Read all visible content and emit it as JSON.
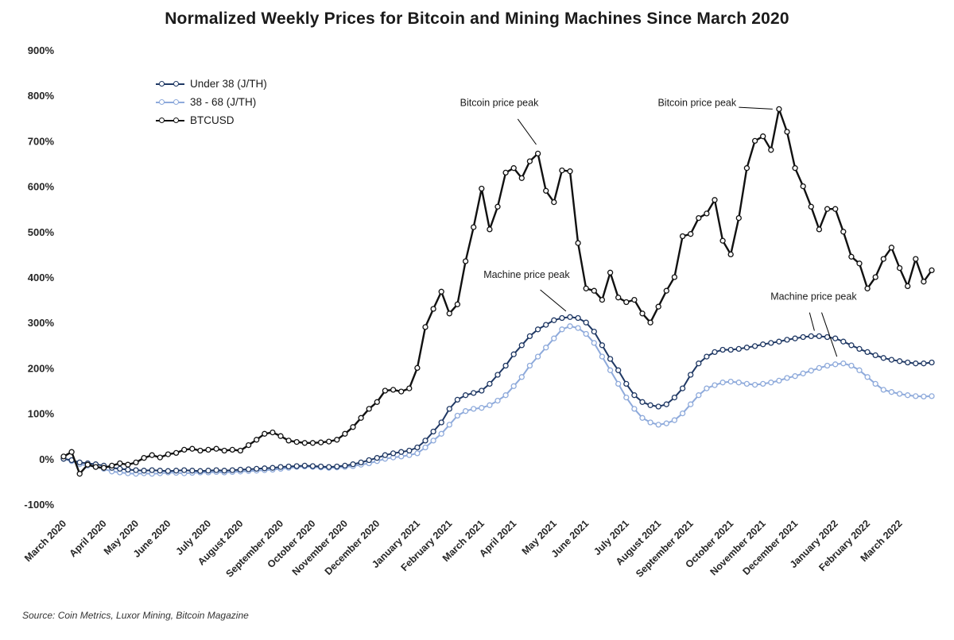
{
  "chart_data": {
    "type": "line",
    "title": "Normalized Weekly Prices for Bitcoin and Mining Machines Since March 2020",
    "source": "Source: Coin Metrics, Luxor Mining, Bitcoin Magazine",
    "legend_position": "top-left-inside",
    "grid": false,
    "y_axis": {
      "format": "percent",
      "ylim": [
        -100,
        900
      ],
      "ticks": [
        900,
        800,
        700,
        600,
        500,
        400,
        300,
        200,
        100,
        0,
        -100
      ]
    },
    "x_axis": {
      "unit": "weekly",
      "tick_labels": [
        "March 2020",
        "April 2020",
        "May 2020",
        "June 2020",
        "July 2020",
        "August 2020",
        "September 2020",
        "October 2020",
        "November 2020",
        "December 2020",
        "January 2021",
        "February 2021",
        "March 2021",
        "April 2021",
        "May 2021",
        "June 2021",
        "July 2021",
        "August 2021",
        "September 2021",
        "October 2021",
        "November 2021",
        "December 2021",
        "January 2022",
        "February 2022",
        "March 2022"
      ],
      "tick_weeks": [
        0,
        5,
        9,
        13,
        18,
        22,
        27,
        31,
        35,
        39,
        44,
        48,
        52,
        56,
        61,
        65,
        70,
        74,
        78,
        83,
        87,
        91,
        96,
        100,
        104
      ]
    },
    "series": [
      {
        "name": "Under 38 (J/TH)",
        "color": "#1F3864",
        "values": [
          0,
          -3,
          -8,
          -10,
          -12,
          -15,
          -20,
          -22,
          -24,
          -25,
          -26,
          -25,
          -26,
          -27,
          -26,
          -25,
          -26,
          -27,
          -26,
          -25,
          -26,
          -25,
          -24,
          -23,
          -22,
          -21,
          -20,
          -18,
          -17,
          -16,
          -15,
          -16,
          -17,
          -18,
          -17,
          -15,
          -12,
          -8,
          -3,
          2,
          8,
          12,
          15,
          18,
          25,
          40,
          60,
          80,
          110,
          130,
          140,
          145,
          150,
          165,
          185,
          205,
          230,
          250,
          270,
          285,
          295,
          305,
          310,
          312,
          310,
          300,
          280,
          250,
          220,
          195,
          165,
          140,
          125,
          118,
          115,
          120,
          135,
          155,
          185,
          210,
          225,
          235,
          240,
          240,
          242,
          245,
          248,
          252,
          255,
          258,
          262,
          265,
          268,
          270,
          270,
          268,
          265,
          258,
          250,
          242,
          235,
          228,
          222,
          218,
          215,
          212,
          210,
          210,
          212
        ]
      },
      {
        "name": "38 - 68 (J/TH)",
        "color": "#8EAADB",
        "values": [
          0,
          -5,
          -12,
          -15,
          -18,
          -22,
          -28,
          -30,
          -32,
          -33,
          -32,
          -33,
          -32,
          -30,
          -31,
          -32,
          -31,
          -30,
          -30,
          -29,
          -30,
          -29,
          -28,
          -27,
          -26,
          -25,
          -24,
          -22,
          -20,
          -18,
          -17,
          -18,
          -19,
          -20,
          -19,
          -18,
          -16,
          -13,
          -10,
          -5,
          0,
          3,
          5,
          8,
          12,
          25,
          40,
          55,
          75,
          95,
          105,
          110,
          112,
          118,
          128,
          140,
          160,
          180,
          205,
          225,
          245,
          265,
          285,
          292,
          288,
          275,
          255,
          225,
          195,
          165,
          135,
          110,
          90,
          80,
          75,
          78,
          85,
          100,
          120,
          140,
          155,
          162,
          168,
          170,
          168,
          165,
          163,
          165,
          168,
          172,
          178,
          182,
          188,
          194,
          200,
          205,
          208,
          210,
          205,
          195,
          180,
          165,
          152,
          147,
          143,
          140,
          138,
          137,
          138
        ]
      },
      {
        "name": "BTCUSD",
        "color": "#111111",
        "values": [
          5,
          15,
          -33,
          -13,
          -18,
          -20,
          -15,
          -10,
          -13,
          -8,
          2,
          8,
          3,
          10,
          13,
          20,
          22,
          18,
          20,
          22,
          18,
          20,
          18,
          30,
          42,
          55,
          58,
          50,
          40,
          37,
          35,
          35,
          36,
          38,
          42,
          55,
          70,
          90,
          110,
          125,
          150,
          152,
          148,
          155,
          200,
          290,
          330,
          368,
          320,
          340,
          435,
          510,
          595,
          505,
          555,
          630,
          640,
          618,
          655,
          672,
          590,
          565,
          635,
          633,
          475,
          375,
          370,
          350,
          410,
          355,
          345,
          350,
          320,
          300,
          335,
          370,
          400,
          490,
          495,
          530,
          540,
          570,
          480,
          450,
          530,
          640,
          700,
          710,
          680,
          770,
          720,
          640,
          600,
          555,
          505,
          550,
          550,
          500,
          445,
          430,
          375,
          400,
          440,
          465,
          420,
          380,
          440,
          390,
          415
        ]
      }
    ],
    "annotations": [
      {
        "text": "Bitcoin price peak",
        "week": 54.2,
        "value": 777,
        "lines": [
          [
            56.5,
            748,
            58.8,
            692
          ]
        ]
      },
      {
        "text": "Bitcoin price peak",
        "week": 78.8,
        "value": 777,
        "lines": [
          [
            84.0,
            774,
            88.2,
            770
          ]
        ]
      },
      {
        "text": "Machine price peak",
        "week": 57.6,
        "value": 398,
        "lines": [
          [
            59.3,
            372,
            62.5,
            325
          ]
        ]
      },
      {
        "text": "Machine price peak",
        "week": 93.3,
        "value": 350,
        "lines": [
          [
            92.8,
            322,
            93.4,
            282
          ],
          [
            94.3,
            322,
            96.2,
            225
          ]
        ]
      }
    ]
  }
}
